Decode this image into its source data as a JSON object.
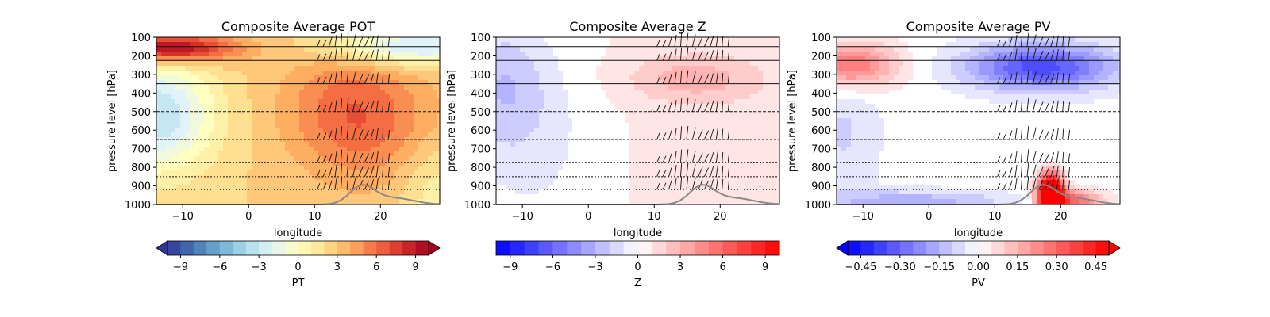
{
  "chart_data": [
    {
      "type": "heatmap",
      "title": "Composite Average POT",
      "xlabel": "longitude",
      "ylabel": "pressure level [hPa]",
      "xlim": [
        -14,
        29
      ],
      "ylim": [
        1000,
        100
      ],
      "xticks": [
        "-10",
        "0",
        "10",
        "20"
      ],
      "yticks": [
        "100",
        "200",
        "300",
        "400",
        "500",
        "600",
        "700",
        "800",
        "900",
        "1000"
      ],
      "colorbar": {
        "label": "PT",
        "range": [
          -10,
          10
        ],
        "ticks": [
          "-9",
          "-6",
          "-3",
          "0",
          "3",
          "6",
          "9"
        ],
        "extend": "both",
        "colormap": "RdYlBu_r",
        "colors": [
          "#313695",
          "#4575b4",
          "#74add1",
          "#abd9e9",
          "#e0f3f8",
          "#ffffbf",
          "#fee090",
          "#fdae61",
          "#f46d43",
          "#d73027",
          "#a50026"
        ]
      }
    },
    {
      "type": "heatmap",
      "title": "Composite Average Z",
      "xlabel": "longitude",
      "ylabel": "pressure level [hPa]",
      "xlim": [
        -14,
        29
      ],
      "ylim": [
        1000,
        100
      ],
      "xticks": [
        "-10",
        "0",
        "10",
        "20"
      ],
      "yticks": [
        "100",
        "200",
        "300",
        "400",
        "500",
        "600",
        "700",
        "800",
        "900",
        "1000"
      ],
      "colorbar": {
        "label": "Z",
        "range": [
          -10,
          10
        ],
        "ticks": [
          "-9",
          "-6",
          "-3",
          "0",
          "3",
          "6",
          "9"
        ],
        "extend": "neither",
        "colormap": "bwr",
        "colors": [
          "#0000ff",
          "#ffffff",
          "#ff0000"
        ]
      }
    },
    {
      "type": "heatmap",
      "title": "Composite Average PV",
      "xlabel": "longitude",
      "ylabel": "pressure level [hPa]",
      "xlim": [
        -14,
        29
      ],
      "ylim": [
        1000,
        100
      ],
      "xticks": [
        "-10",
        "0",
        "10",
        "20"
      ],
      "yticks": [
        "100",
        "200",
        "300",
        "400",
        "500",
        "600",
        "700",
        "800",
        "900",
        "1000"
      ],
      "colorbar": {
        "label": "PV",
        "range": [
          -0.5,
          0.5
        ],
        "ticks": [
          "−0.45",
          "−0.30",
          "−0.15",
          "0.00",
          "0.15",
          "0.30",
          "0.45"
        ],
        "extend": "both",
        "colormap": "bwr",
        "colors": [
          "#0000ff",
          "#ffffff",
          "#ff0000"
        ]
      }
    }
  ]
}
